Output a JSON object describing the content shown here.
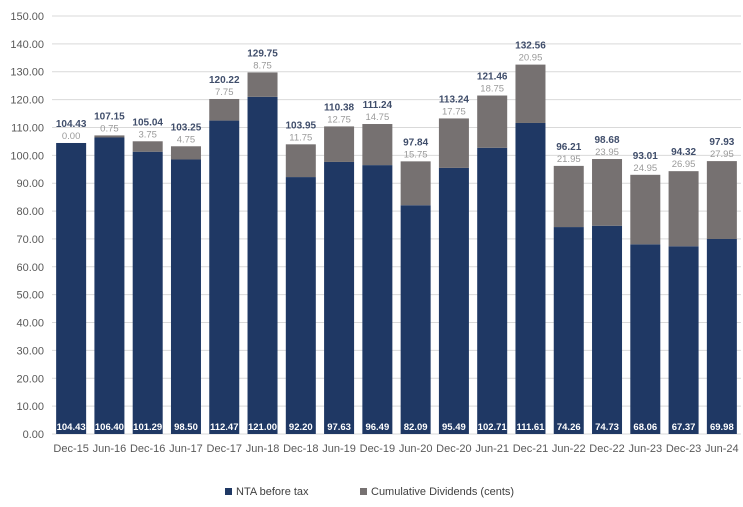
{
  "chart_data": {
    "type": "bar",
    "stacked": true,
    "categories": [
      "Dec-15",
      "Jun-16",
      "Dec-16",
      "Jun-17",
      "Dec-17",
      "Jun-18",
      "Dec-18",
      "Jun-19",
      "Dec-19",
      "Jun-20",
      "Dec-20",
      "Jun-21",
      "Dec-21",
      "Jun-22",
      "Dec-22",
      "Jun-23",
      "Dec-23",
      "Jun-24"
    ],
    "series": [
      {
        "name": "NTA before tax",
        "color": "#1f3864",
        "values": [
          104.43,
          106.4,
          101.29,
          98.5,
          112.47,
          121.0,
          92.2,
          97.63,
          96.49,
          82.09,
          95.49,
          102.71,
          111.61,
          74.26,
          74.73,
          68.06,
          67.37,
          69.98
        ],
        "labels": [
          "104.43",
          "106.40",
          "101.29",
          "98.50",
          "112.47",
          "121.00",
          "92.20",
          "97.63",
          "96.49",
          "82.09",
          "95.49",
          "102.71",
          "111.61",
          "74.26",
          "74.73",
          "68.06",
          "67.37",
          "69.98"
        ]
      },
      {
        "name": "Cumulative Dividends (cents)",
        "color": "#767171",
        "values": [
          0.0,
          0.75,
          3.75,
          4.75,
          7.75,
          8.75,
          11.75,
          12.75,
          14.75,
          15.75,
          17.75,
          18.75,
          20.95,
          21.95,
          23.95,
          24.95,
          26.95,
          27.95
        ],
        "labels": [
          "0.00",
          "0.75",
          "3.75",
          "4.75",
          "7.75",
          "8.75",
          "11.75",
          "12.75",
          "14.75",
          "15.75",
          "17.75",
          "18.75",
          "20.95",
          "21.95",
          "23.95",
          "24.95",
          "26.95",
          "27.95"
        ]
      }
    ],
    "totals": [
      "104.43",
      "107.15",
      "105.04",
      "103.25",
      "120.22",
      "129.75",
      "103.95",
      "110.38",
      "111.24",
      "97.84",
      "113.24",
      "121.46",
      "132.56",
      "96.21",
      "98.68",
      "93.01",
      "94.32",
      "97.93"
    ],
    "ylim": [
      0,
      150
    ],
    "yticks": [
      "0.00",
      "10.00",
      "20.00",
      "30.00",
      "40.00",
      "50.00",
      "60.00",
      "70.00",
      "80.00",
      "90.00",
      "100.00",
      "110.00",
      "120.00",
      "130.00",
      "140.00",
      "150.00"
    ],
    "title": "",
    "xlabel": "",
    "ylabel": "",
    "grid": true,
    "legend_position": "bottom"
  }
}
